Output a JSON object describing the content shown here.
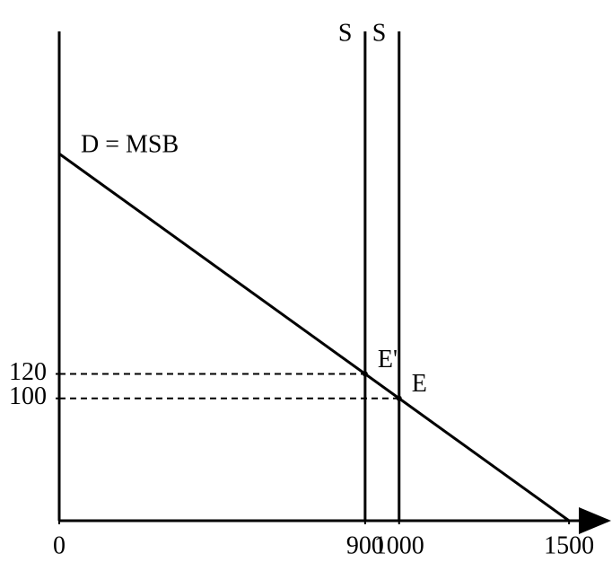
{
  "chart_data": {
    "type": "line",
    "x": [
      0,
      1500
    ],
    "series": [
      {
        "name": "D = MSB",
        "color": "#000000",
        "values": [
          300,
          0
        ]
      }
    ],
    "supply_lines": [
      {
        "x": 900,
        "label": "S"
      },
      {
        "x": 1000,
        "label": "S"
      }
    ],
    "points": [
      {
        "x": 900,
        "y": 120,
        "label": "E'"
      },
      {
        "x": 1000,
        "y": 100,
        "label": "E"
      }
    ],
    "xlim": [
      0,
      1600
    ],
    "ylim": [
      0,
      400
    ],
    "xticks": [
      0,
      900,
      1000,
      1500
    ],
    "yticks": [
      100,
      120
    ]
  }
}
